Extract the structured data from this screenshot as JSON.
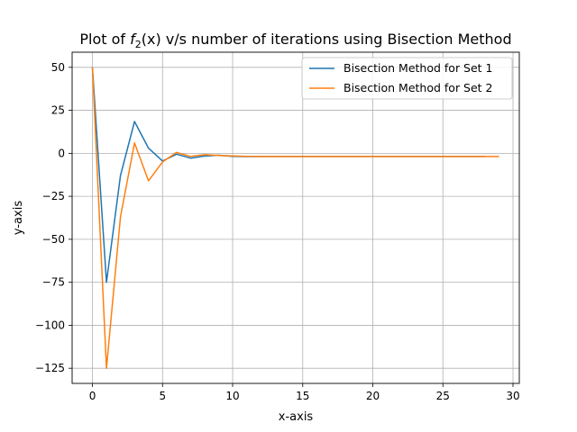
{
  "chart_data": {
    "type": "line",
    "title": {
      "prefix": "Plot of ",
      "f": "f",
      "sub": "2",
      "suffix": "(x) v/s number of iterations using Bisection Method"
    },
    "xlabel": "x-axis",
    "ylabel": "y-axis",
    "xlim": [
      -1.45,
      30.45
    ],
    "ylim": [
      -133.8,
      58.8
    ],
    "xticks": [
      0,
      5,
      10,
      15,
      20,
      25,
      30
    ],
    "yticks": [
      50,
      25,
      0,
      -25,
      -50,
      -75,
      -100,
      -125
    ],
    "ytick_labels": [
      "50",
      "25",
      "0",
      "−25",
      "−50",
      "−75",
      "−100",
      "−125"
    ],
    "grid": true,
    "legend_position": "top-right",
    "series": [
      {
        "name": "Bisection Method for Set 1",
        "color": "#1f77b4",
        "x": [
          0,
          1,
          2,
          3,
          4,
          5,
          6,
          7,
          8,
          9,
          10,
          11,
          12,
          13,
          14,
          15,
          16,
          17,
          18,
          19,
          20,
          21,
          22,
          23,
          24,
          25,
          26,
          27,
          28
        ],
        "y": [
          50,
          -75,
          -13,
          18.5,
          3,
          -4.5,
          -0.5,
          -2.8,
          -1.6,
          -1.1,
          -1.8,
          -1.9,
          -1.85,
          -1.85,
          -1.85,
          -1.85,
          -1.85,
          -1.85,
          -1.85,
          -1.85,
          -1.85,
          -1.85,
          -1.85,
          -1.85,
          -1.85,
          -1.85,
          -1.85,
          -1.85,
          -1.85
        ]
      },
      {
        "name": "Bisection Method for Set 2",
        "color": "#ff7f0e",
        "x": [
          0,
          1,
          2,
          3,
          4,
          5,
          6,
          7,
          8,
          9,
          10,
          11,
          12,
          13,
          14,
          15,
          16,
          17,
          18,
          19,
          20,
          21,
          22,
          23,
          24,
          25,
          26,
          27,
          28,
          29
        ],
        "y": [
          50,
          -125,
          -37,
          6,
          -16,
          -5,
          0.5,
          -1.8,
          -0.8,
          -1.3,
          -1.5,
          -1.8,
          -1.85,
          -1.85,
          -1.85,
          -1.85,
          -1.85,
          -1.85,
          -1.85,
          -1.85,
          -1.85,
          -1.85,
          -1.85,
          -1.85,
          -1.85,
          -1.85,
          -1.85,
          -1.85,
          -1.85,
          -1.85
        ]
      }
    ]
  }
}
